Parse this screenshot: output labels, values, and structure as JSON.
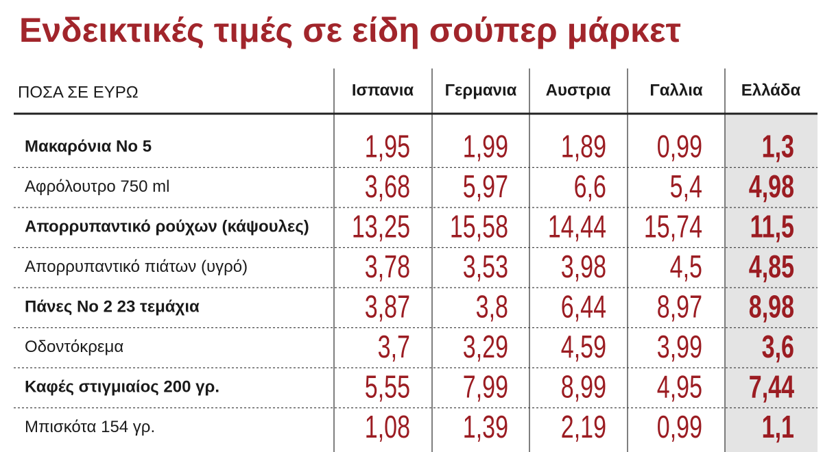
{
  "title": "Ενδεικτικές τιμές σε είδη σούπερ μάρκετ",
  "table": {
    "header": [
      "ΠΟΣΑ ΣΕ ΕΥΡΩ",
      "Ισπανια",
      "Γερμανια",
      "Αυστρια",
      "Γαλλια",
      "Ελλάδα"
    ],
    "rows": [
      [
        "Μακαρόνια Νο 5",
        "1,95",
        "1,99",
        "1,89",
        "0,99",
        "1,3"
      ],
      [
        "Αφρόλουτρο 750 ml",
        "3,68",
        "5,97",
        "6,6",
        "5,4",
        "4,98"
      ],
      [
        "Απορρυπαντικό ρούχων (κάψουλες)",
        "13,25",
        "15,58",
        "14,44",
        "15,74",
        "11,5"
      ],
      [
        "Απορρυπαντικό πιάτων (υγρό)",
        "3,78",
        "3,53",
        "3,98",
        "4,5",
        "4,85"
      ],
      [
        "Πάνες Νο 2 23 τεμάχια",
        "3,87",
        "3,8",
        "6,44",
        "8,97",
        "8,98"
      ],
      [
        "Οδοντόκρεμα",
        "3,7",
        "3,29",
        "4,59",
        "3,99",
        "3,6"
      ],
      [
        "Καφές στιγμιαίος 200 γρ.",
        "5,55",
        "7,99",
        "8,99",
        "4,95",
        "7,44"
      ],
      [
        "Μπισκότα 154 γρ.",
        "1,08",
        "1,39",
        "2,19",
        "0,99",
        "1,1"
      ]
    ]
  }
}
